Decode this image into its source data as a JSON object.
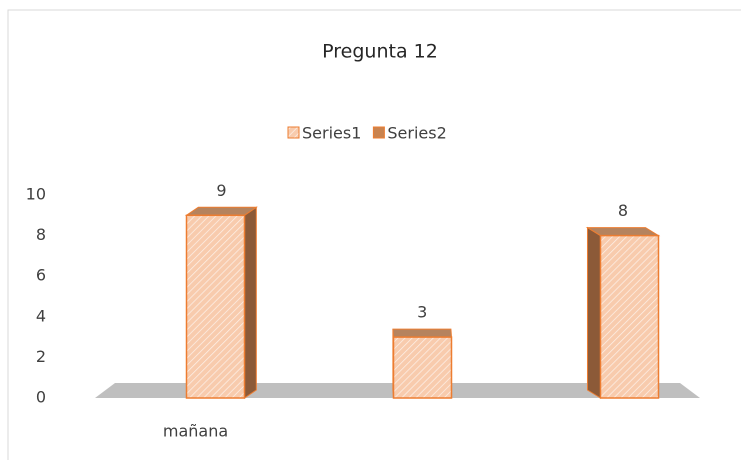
{
  "chart_data": {
    "type": "bar3d",
    "title": "Pregunta 12",
    "categories": [
      "mañana",
      null,
      null
    ],
    "series": [
      {
        "name": "Series1",
        "color": "#f8cbad",
        "edge": "#ed7d31",
        "values": [
          9,
          3,
          8
        ]
      },
      {
        "name": "Series2",
        "color": "#c9834f",
        "edge": "#ed7d31",
        "values": [
          null,
          null,
          null
        ]
      }
    ],
    "ylim": [
      0,
      10
    ],
    "yticks": [
      0,
      2,
      4,
      6,
      8,
      10
    ],
    "grid": false,
    "legend": "top"
  }
}
